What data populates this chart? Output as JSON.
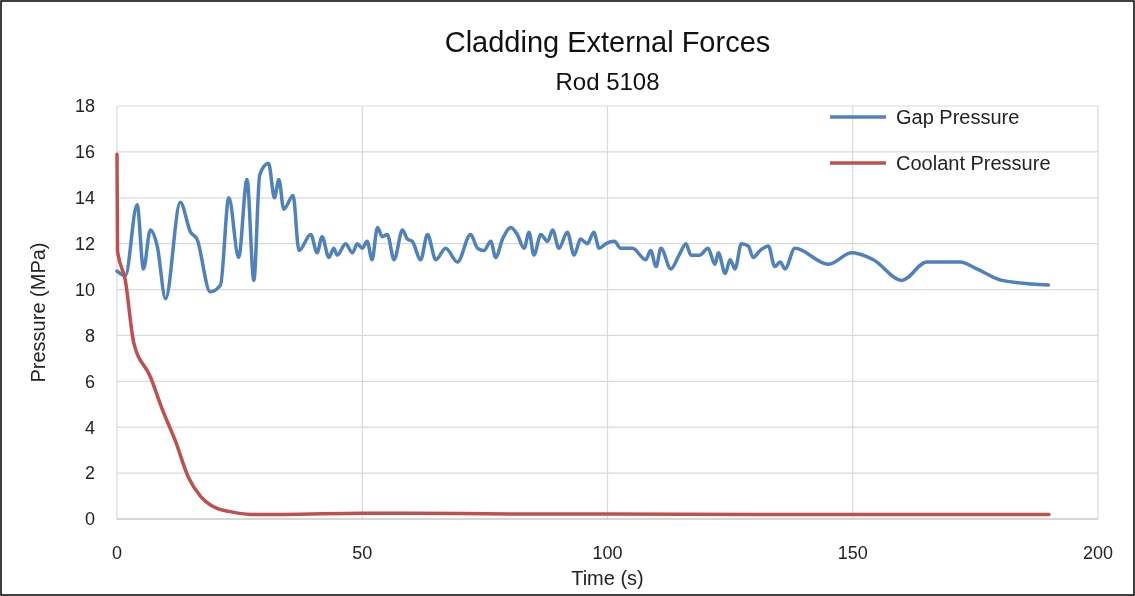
{
  "chart_data": {
    "type": "line",
    "title": "Cladding External Forces",
    "subtitle": "Rod 5108",
    "xlabel": "Time (s)",
    "ylabel": "Pressure (MPa)",
    "xlim": [
      0,
      200
    ],
    "xticks": [
      0,
      50,
      100,
      150,
      200
    ],
    "ylim": [
      0,
      18
    ],
    "yticks": [
      0,
      2,
      4,
      6,
      8,
      10,
      12,
      14,
      16,
      18
    ],
    "grid": true,
    "legend": "top right",
    "marker": "none",
    "line_style": "solid",
    "series": [
      {
        "name": "Gap Pressure",
        "color": "#4f81bd",
        "x": [
          0,
          1.7,
          4.1,
          5.4,
          6.8,
          8.2,
          9.9,
          12.9,
          15,
          16.3,
          19,
          21.1,
          22.8,
          24.8,
          26.5,
          27.9,
          29.1,
          30.9,
          32.1,
          33,
          34,
          35.9,
          37.1,
          39.5,
          40.8,
          41.8,
          43.2,
          44.2,
          44.9,
          46.6,
          48,
          49,
          50,
          51,
          52,
          53.1,
          54.1,
          55.1,
          56.5,
          58.2,
          59.2,
          60.2,
          61.9,
          63.3,
          65,
          67,
          69.4,
          72.1,
          73.5,
          74.8,
          76.2,
          77.2,
          78.6,
          80.3,
          81.6,
          83,
          84,
          85,
          86.4,
          87.8,
          88.8,
          90.1,
          91.8,
          93.2,
          94.5,
          95.9,
          97.2,
          98.3,
          99.7,
          101.4,
          102.7,
          105.1,
          107.8,
          108.8,
          109.9,
          110.9,
          112.9,
          114.6,
          116,
          117,
          118.8,
          120.5,
          121.9,
          122.6,
          124,
          125,
          126,
          127.3,
          128.7,
          129.7,
          131.1,
          132.8,
          134.1,
          135.2,
          136.2,
          138.2,
          145,
          149.8,
          154.2,
          160,
          165.1,
          171.9,
          175.3,
          180.4,
          189.9
        ],
        "values": [
          10.8,
          10.6,
          13.7,
          10.9,
          12.6,
          11.9,
          9.6,
          13.8,
          12.5,
          12.2,
          9.9,
          10.2,
          14.0,
          11.4,
          14.8,
          10.4,
          15.0,
          15.5,
          14.0,
          14.8,
          13.5,
          14.1,
          11.7,
          12.4,
          11.6,
          12.3,
          11.4,
          11.8,
          11.5,
          12.0,
          11.6,
          12.0,
          11.8,
          12.1,
          11.3,
          12.7,
          12.3,
          12.4,
          11.3,
          12.6,
          12.2,
          12.1,
          11.3,
          12.4,
          11.3,
          11.8,
          11.2,
          12.4,
          11.8,
          11.7,
          12.1,
          11.4,
          12.2,
          12.7,
          12.4,
          11.8,
          12.5,
          11.5,
          12.4,
          12.1,
          12.6,
          11.8,
          12.5,
          11.5,
          12.2,
          12.0,
          12.5,
          11.8,
          12.0,
          12.1,
          11.8,
          11.8,
          11.3,
          11.7,
          11.0,
          11.8,
          10.9,
          11.5,
          12.0,
          11.5,
          11.5,
          11.8,
          11.1,
          11.6,
          10.7,
          11.3,
          10.9,
          12.0,
          11.9,
          11.4,
          11.7,
          11.9,
          11.0,
          11.2,
          10.9,
          11.8,
          11.1,
          11.6,
          11.3,
          10.4,
          11.2,
          11.2,
          10.9,
          10.4,
          10.2
        ]
      },
      {
        "name": "Coolant Pressure",
        "color": "#c0504d",
        "x": [
          0,
          0.1,
          1.7,
          3.4,
          6.8,
          9.2,
          11.9,
          14.6,
          17,
          19.7,
          23.1,
          27.2,
          34,
          50,
          60,
          80,
          100,
          130,
          160,
          190
        ],
        "values": [
          15.9,
          11.7,
          10.4,
          7.7,
          6.2,
          4.8,
          3.4,
          1.8,
          1.0,
          0.53,
          0.32,
          0.2,
          0.2,
          0.25,
          0.25,
          0.22,
          0.22,
          0.2,
          0.2,
          0.2
        ]
      }
    ]
  }
}
